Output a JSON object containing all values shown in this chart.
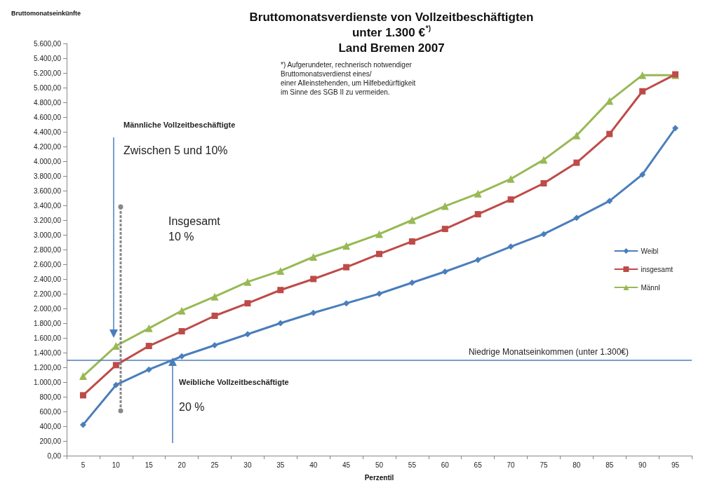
{
  "chart_data": {
    "type": "line",
    "title": "Bruttomonatsverdienste von Vollzeitbeschäftigten\nunter 1.300 €$^{*)}$\nLand Bremen 2007",
    "ylabel": "Bruttomonatseinkünfte",
    "xlabel": "Perzentil",
    "categories": [
      "5",
      "10",
      "15",
      "20",
      "25",
      "30",
      "35",
      "40",
      "45",
      "50",
      "55",
      "60",
      "65",
      "70",
      "75",
      "80",
      "85",
      "90",
      "95"
    ],
    "series": [
      {
        "name": "Weibl",
        "color": "#4a7ebb",
        "marker": "diamond",
        "values": [
          420,
          960,
          1170,
          1350,
          1500,
          1650,
          1800,
          1940,
          2070,
          2200,
          2350,
          2500,
          2660,
          2840,
          3010,
          3230,
          3460,
          3820,
          4450
        ]
      },
      {
        "name": "insgesamt",
        "color": "#be4b48",
        "marker": "square",
        "values": [
          820,
          1230,
          1490,
          1690,
          1900,
          2070,
          2250,
          2400,
          2560,
          2740,
          2910,
          3080,
          3280,
          3480,
          3700,
          3980,
          4370,
          4950,
          5180
        ]
      },
      {
        "name": "Männl",
        "color": "#98b954",
        "marker": "triangle",
        "values": [
          1080,
          1490,
          1730,
          1970,
          2160,
          2360,
          2510,
          2700,
          2850,
          3010,
          3200,
          3390,
          3560,
          3760,
          4020,
          4350,
          4820,
          5170,
          5170
        ]
      }
    ],
    "ylim": [
      0,
      5600
    ],
    "yticks": [
      {
        "value": 0,
        "label": "0,00"
      },
      {
        "value": 200,
        "label": "200,00"
      },
      {
        "value": 400,
        "label": "400,00"
      },
      {
        "value": 600,
        "label": "600,00"
      },
      {
        "value": 800,
        "label": "800,00"
      },
      {
        "value": 1000,
        "label": "1.000,00"
      },
      {
        "value": 1200,
        "label": "1.200,00"
      },
      {
        "value": 1400,
        "label": "1.400,00"
      },
      {
        "value": 1600,
        "label": "1.600,00"
      },
      {
        "value": 1800,
        "label": "1.800,00"
      },
      {
        "value": 2000,
        "label": "2.000,00"
      },
      {
        "value": 2200,
        "label": "2.200,00"
      },
      {
        "value": 2400,
        "label": "2.400,00"
      },
      {
        "value": 2600,
        "label": "2.600,00"
      },
      {
        "value": 2800,
        "label": "2.800,00"
      },
      {
        "value": 3000,
        "label": "3.000,00"
      },
      {
        "value": 3200,
        "label": "3.200,00"
      },
      {
        "value": 3400,
        "label": "3.400,00"
      },
      {
        "value": 3600,
        "label": "3.600,00"
      },
      {
        "value": 3800,
        "label": "3.800,00"
      },
      {
        "value": 4000,
        "label": "4.000,00"
      },
      {
        "value": 4200,
        "label": "4.200,00"
      },
      {
        "value": 4400,
        "label": "4.400,00"
      },
      {
        "value": 4600,
        "label": "4.600,00"
      },
      {
        "value": 4800,
        "label": "4.800,00"
      },
      {
        "value": 5000,
        "label": "5.000,00"
      },
      {
        "value": 5200,
        "label": "5.200,00"
      },
      {
        "value": 5400,
        "label": "5.400,00"
      },
      {
        "value": 5600,
        "label": "5.600,00"
      }
    ],
    "ref_lines": [
      {
        "axis": "y",
        "value": 1300,
        "label": "Niedrige Monatseinkommen (unter 1.300€)",
        "color": "#4a7ebb"
      }
    ],
    "annotations": [
      "*) Aufgerundeter, rechnerisch notwendiger\nBruttomonatsverdienst eines/\neiner Alleinstehenden, um Hilfebedürftigkeit\nim Sinne des SGB II zu vermeiden.",
      "Männliche Vollzeitbeschäftigte",
      "Zwischen 5 und 10%",
      "Insgesamt\n10 %",
      "Weibliche Vollzeitbeschäftigte",
      "20 %"
    ],
    "legend": "right",
    "grid": false
  }
}
